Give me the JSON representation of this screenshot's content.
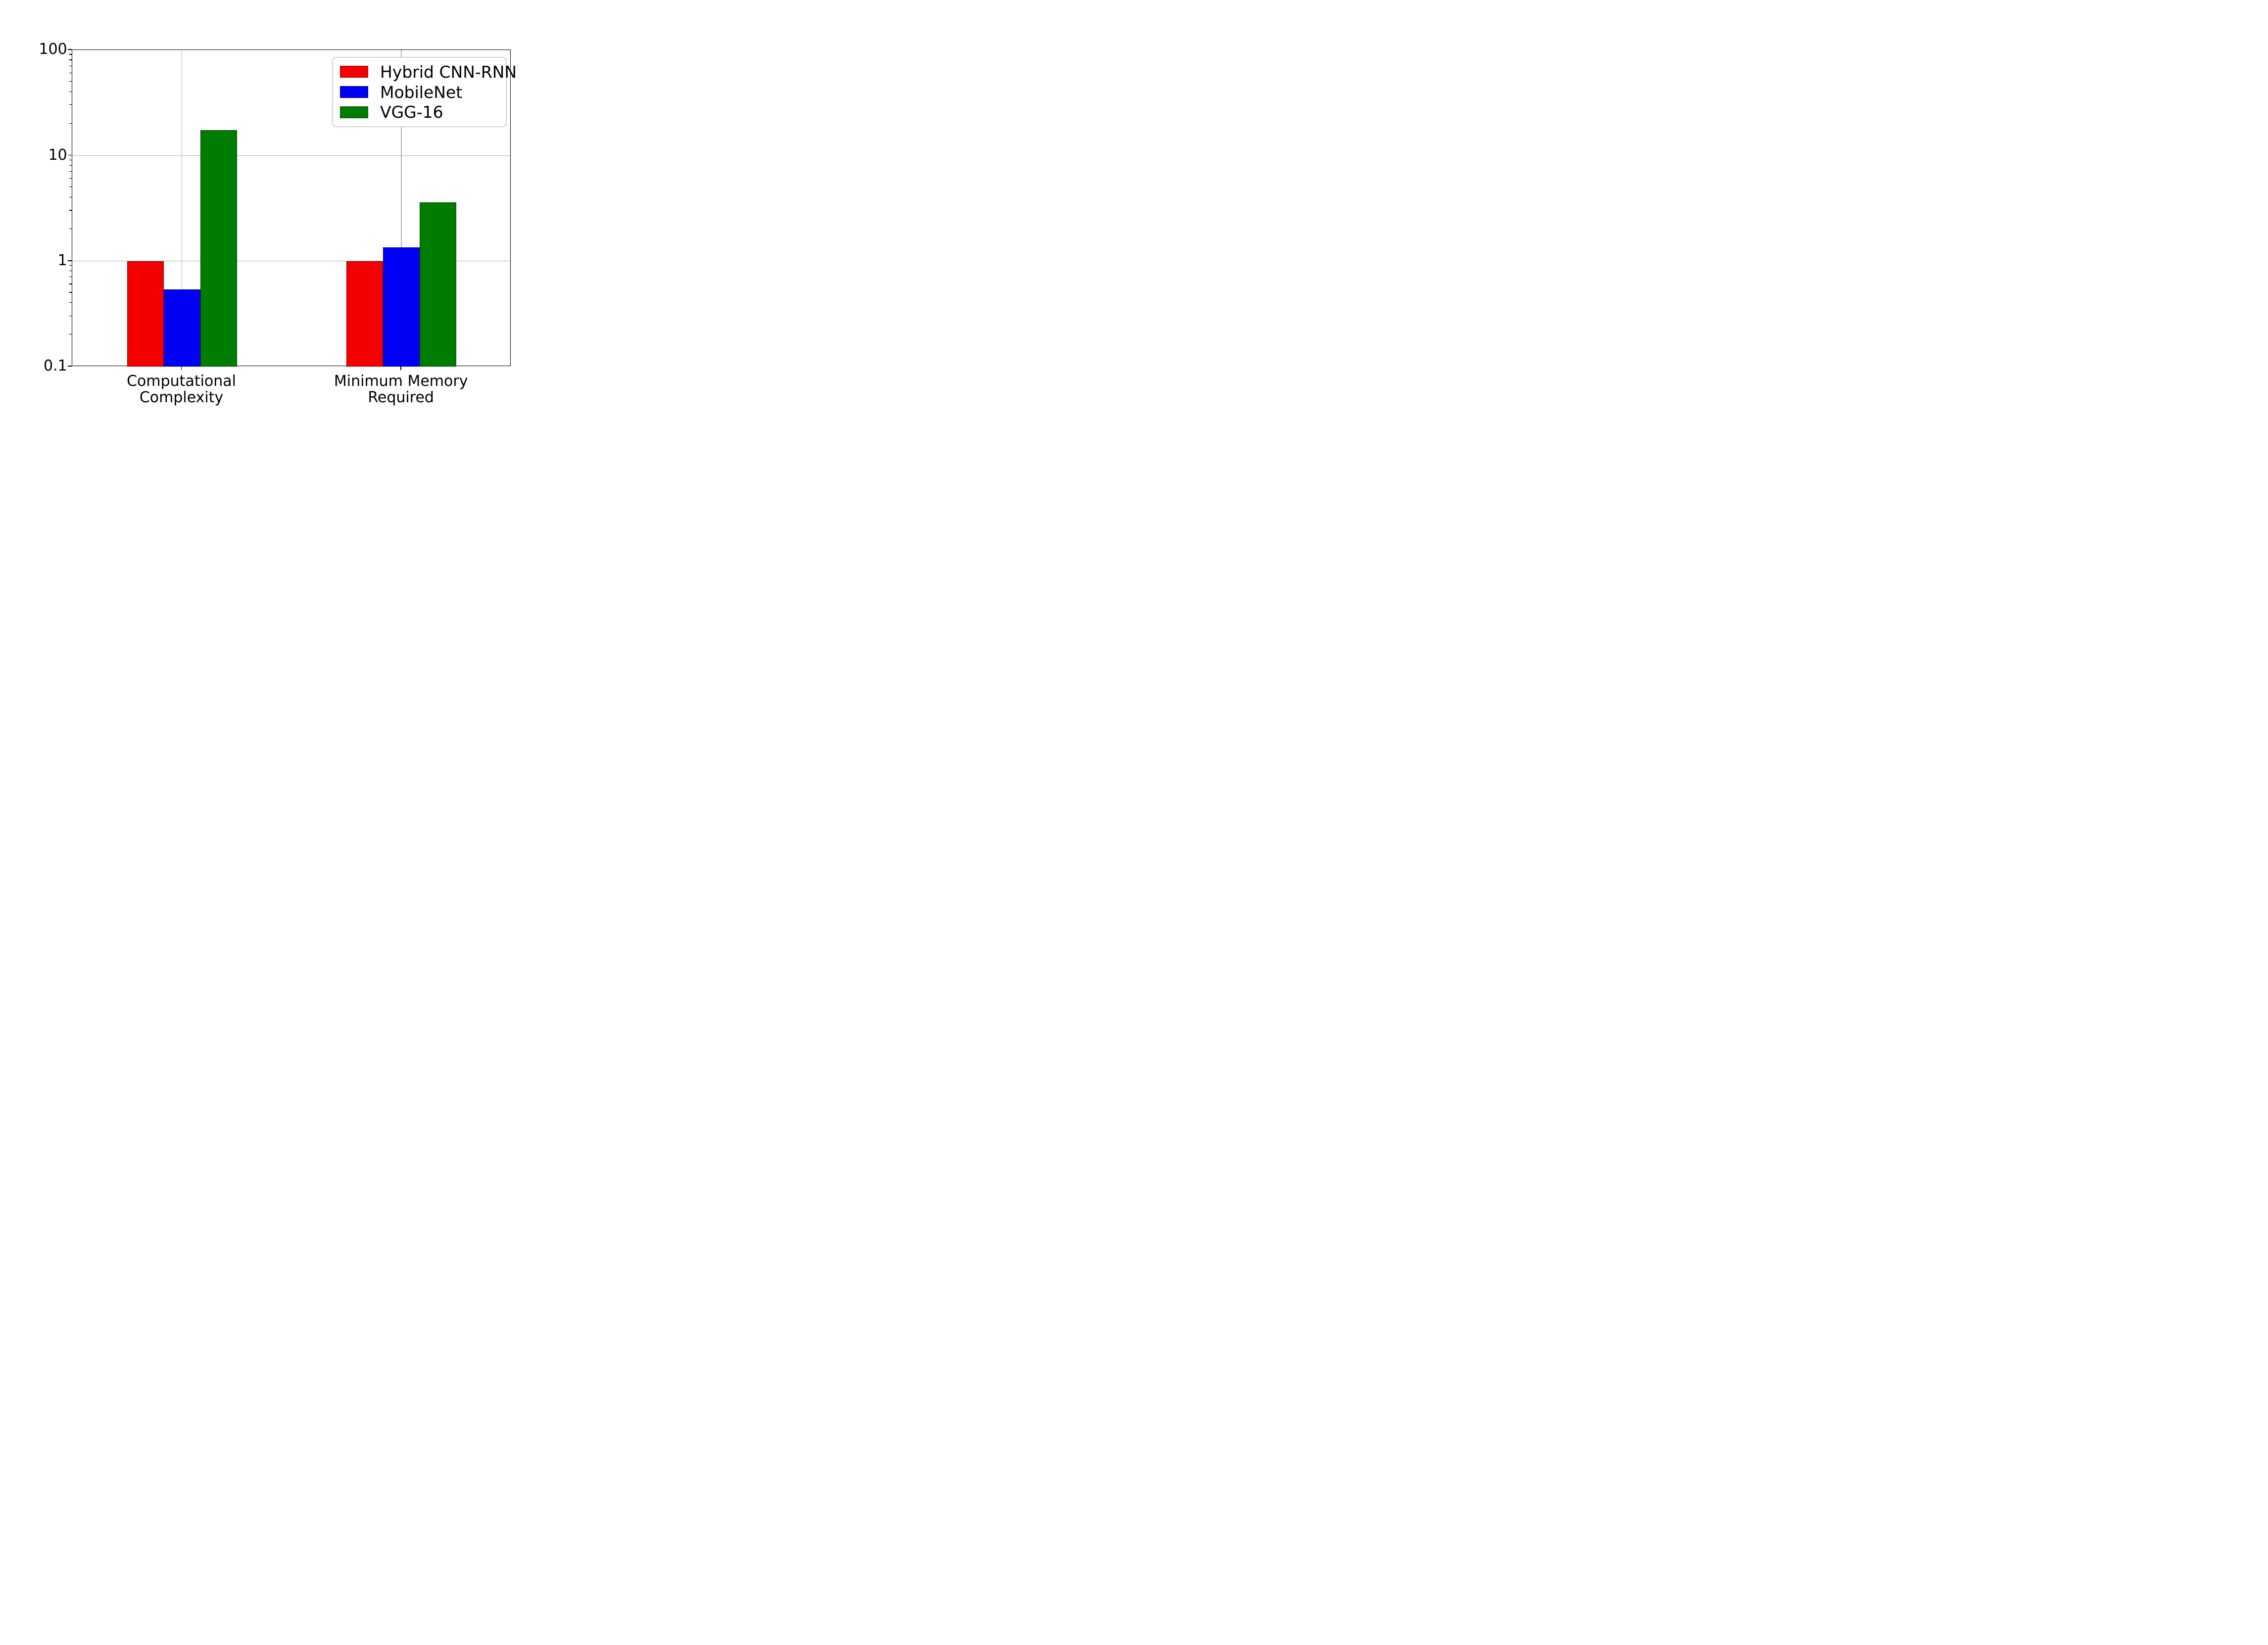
{
  "chart_data": {
    "type": "bar",
    "title": "",
    "y_axis": {
      "scale": "log",
      "min": 0.1,
      "max": 100,
      "tick_values": [
        100,
        10,
        1,
        0.1
      ],
      "tick_labels": [
        "100",
        "10",
        "1",
        "0.1"
      ],
      "gridline_values": [
        10,
        1
      ]
    },
    "categories": [
      {
        "label_line1": "Computational",
        "label_line2": "Complexity",
        "center_frac": 0.25
      },
      {
        "label_line1": "Minimum Memory",
        "label_line2": "Required",
        "center_frac": 0.75
      }
    ],
    "series": [
      {
        "name": "Hybrid CNN-RNN",
        "color": "#f40000",
        "values": [
          1.0,
          1.0
        ]
      },
      {
        "name": "MobileNet",
        "color": "#0000f5",
        "values": [
          0.54,
          1.35
        ]
      },
      {
        "name": "VGG-16",
        "color": "#007d00",
        "values": [
          17.4,
          3.6
        ]
      }
    ],
    "grid": true,
    "legend_position": "upper right",
    "colors": {
      "gridline": "#b2b2b2",
      "axis": "#000000",
      "background": "#ffffff",
      "text": "#000000",
      "legend_border": "#d4d4d4"
    }
  }
}
